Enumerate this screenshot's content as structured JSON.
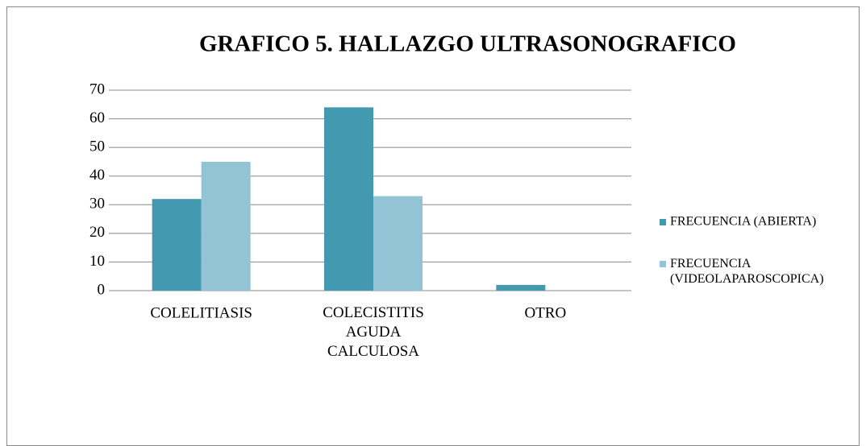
{
  "chart_data": {
    "type": "bar",
    "title": "GRAFICO 5. HALLAZGO ULTRASONOGRAFICO",
    "categories": [
      "COLELITIASIS",
      "COLECISTITIS AGUDA CALCULOSA",
      "OTRO"
    ],
    "series": [
      {
        "name": "FRECUENCIA (ABIERTA)",
        "color": "#4299b0",
        "values": [
          32,
          64,
          2
        ]
      },
      {
        "name": "FRECUENCIA (VIDEOLAPAROSCOPICA)",
        "color": "#93c4d5",
        "values": [
          45,
          33,
          0
        ]
      }
    ],
    "ylim": [
      0,
      70
    ],
    "yticks": [
      0,
      10,
      20,
      30,
      40,
      50,
      60,
      70
    ],
    "grid": true,
    "legend": "right"
  }
}
